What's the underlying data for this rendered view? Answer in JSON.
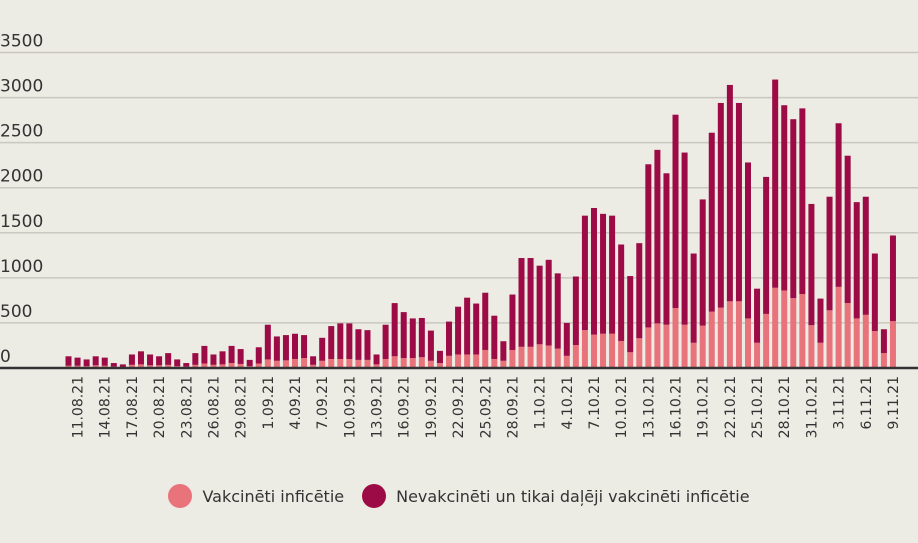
{
  "chart_data": {
    "type": "bar",
    "stacked": true,
    "title": "",
    "xlabel": "",
    "ylabel": "",
    "ylim": [
      0,
      3500
    ],
    "y_ticks": [
      0,
      500,
      1000,
      1500,
      2000,
      2500,
      3000,
      3500
    ],
    "grid": true,
    "legend_position": "bottom",
    "categories": [
      "10.08.21",
      "11.08.21",
      "12.08.21",
      "13.08.21",
      "14.08.21",
      "15.08.21",
      "16.08.21",
      "17.08.21",
      "18.08.21",
      "19.08.21",
      "20.08.21",
      "21.08.21",
      "22.08.21",
      "23.08.21",
      "24.08.21",
      "25.08.21",
      "26.08.21",
      "27.08.21",
      "28.08.21",
      "29.08.21",
      "30.08.21",
      "31.08.21",
      "1.09.21",
      "2.09.21",
      "3.09.21",
      "4.09.21",
      "5.09.21",
      "6.09.21",
      "7.09.21",
      "8.09.21",
      "9.09.21",
      "10.09.21",
      "11.09.21",
      "12.09.21",
      "13.09.21",
      "14.09.21",
      "15.09.21",
      "16.09.21",
      "17.09.21",
      "18.09.21",
      "19.09.21",
      "20.09.21",
      "21.09.21",
      "22.09.21",
      "23.09.21",
      "24.09.21",
      "25.09.21",
      "26.09.21",
      "27.09.21",
      "28.09.21",
      "29.09.21",
      "30.09.21",
      "1.10.21",
      "2.10.21",
      "3.10.21",
      "4.10.21",
      "5.10.21",
      "6.10.21",
      "7.10.21",
      "8.10.21",
      "9.10.21",
      "10.10.21",
      "11.10.21",
      "12.10.21",
      "13.10.21",
      "14.10.21",
      "15.10.21",
      "16.10.21",
      "17.10.21",
      "18.10.21",
      "19.10.21",
      "20.10.21",
      "21.10.21",
      "22.10.21",
      "23.10.21",
      "24.10.21",
      "25.10.21",
      "26.10.21",
      "27.10.21",
      "28.10.21",
      "29.10.21",
      "30.10.21",
      "31.10.21",
      "1.11.21",
      "2.11.21",
      "3.11.21",
      "4.11.21",
      "5.11.21",
      "6.11.21",
      "7.11.21",
      "8.11.21",
      "9.11.21"
    ],
    "tick_labels": [
      "11.08.21",
      "14.08.21",
      "17.08.21",
      "20.08.21",
      "23.08.21",
      "26.08.21",
      "29.08.21",
      "1.09.21",
      "4.09.21",
      "7.09.21",
      "10.09.21",
      "13.09.21",
      "16.09.21",
      "19.09.21",
      "22.09.21",
      "25.09.21",
      "28.09.21",
      "1.10.21",
      "4.10.21",
      "7.10.21",
      "10.10.21",
      "13.10.21",
      "16.10.21",
      "19.10.21",
      "22.10.21",
      "25.10.21",
      "28.10.21",
      "31.10.21",
      "3.11.21",
      "6.11.21",
      "9.11.21"
    ],
    "series": [
      {
        "name": "Vakcinēti inficētie",
        "color": "#e8737b",
        "values": [
          25,
          25,
          20,
          30,
          25,
          15,
          10,
          35,
          40,
          30,
          30,
          35,
          20,
          15,
          35,
          50,
          35,
          40,
          55,
          45,
          20,
          50,
          95,
          80,
          85,
          100,
          110,
          35,
          80,
          100,
          100,
          100,
          90,
          90,
          40,
          100,
          130,
          110,
          110,
          120,
          80,
          55,
          135,
          150,
          150,
          150,
          200,
          100,
          80,
          200,
          235,
          235,
          263,
          250,
          215,
          135,
          255,
          420,
          370,
          380,
          380,
          300,
          175,
          330,
          450,
          495,
          480,
          665,
          480,
          280,
          470,
          625,
          670,
          740,
          740,
          550,
          280,
          600,
          890,
          860,
          775,
          820,
          475,
          280,
          640,
          900,
          720,
          550,
          590,
          410,
          165,
          520
        ]
      },
      {
        "name": "Nevakcinēti un tikai daļēji vakcinēti inficētie",
        "color": "#9c0b45",
        "values": [
          105,
          90,
          75,
          100,
          90,
          40,
          30,
          115,
          145,
          120,
          100,
          130,
          75,
          40,
          130,
          195,
          115,
          145,
          190,
          165,
          70,
          180,
          385,
          270,
          280,
          280,
          255,
          95,
          255,
          365,
          395,
          395,
          340,
          330,
          110,
          380,
          590,
          510,
          440,
          435,
          335,
          135,
          380,
          530,
          630,
          565,
          635,
          480,
          217,
          615,
          985,
          985,
          872,
          950,
          835,
          365,
          760,
          1270,
          1405,
          1330,
          1310,
          1070,
          845,
          1055,
          1810,
          1925,
          1680,
          2145,
          1910,
          990,
          1400,
          1985,
          2270,
          2400,
          2200,
          1730,
          600,
          1520,
          2310,
          2055,
          1985,
          2060,
          1345,
          490,
          1260,
          1815,
          1635,
          1290,
          1310,
          860,
          265,
          950
        ]
      }
    ]
  }
}
